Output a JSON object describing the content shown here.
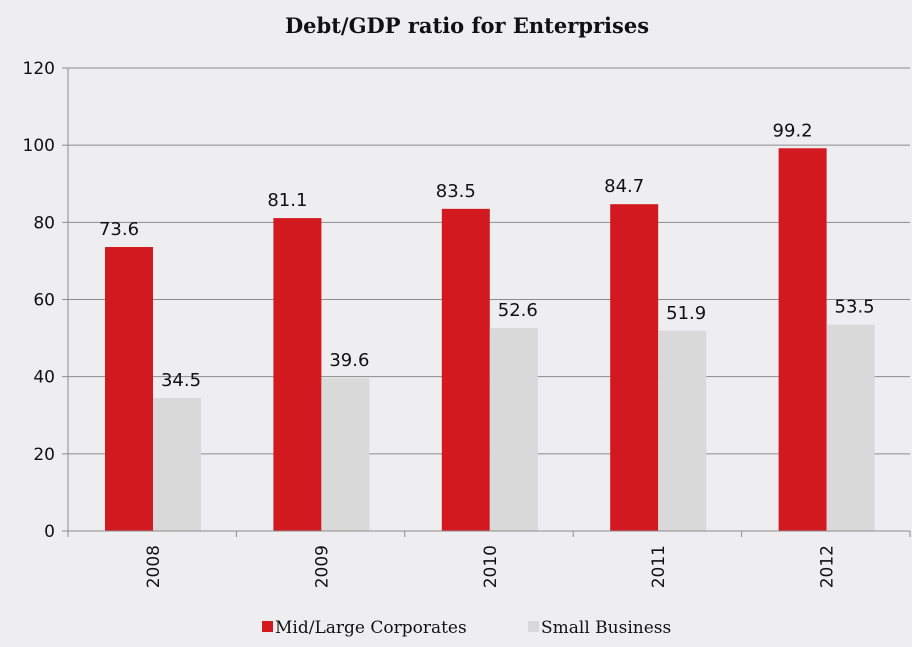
{
  "chart_data": {
    "type": "bar",
    "title": "Debt/GDP ratio for Enterprises",
    "xlabel": "",
    "ylabel": "",
    "categories": [
      "2008",
      "2009",
      "2010",
      "2011",
      "2012"
    ],
    "series": [
      {
        "name": "Mid/Large Corporates",
        "values": [
          73.6,
          81.1,
          83.5,
          84.7,
          99.2
        ],
        "color": "#d2191f"
      },
      {
        "name": "Small Business",
        "values": [
          34.5,
          39.6,
          52.6,
          51.9,
          53.5
        ],
        "color": "#d9d9d9"
      }
    ],
    "value_labels": [
      [
        "73.6",
        "81.1",
        "83.5",
        "84.7",
        "99.2"
      ],
      [
        "34.5",
        "39.6",
        "52.6",
        "51.9",
        "53.5"
      ]
    ],
    "ylim": [
      0,
      120
    ],
    "yticks": [
      "0",
      "20",
      "40",
      "60",
      "80",
      "100",
      "120"
    ],
    "grid": true,
    "legend": "bottom",
    "gridline_color": "#8c8c8c",
    "background_color": "#eeeef0"
  }
}
